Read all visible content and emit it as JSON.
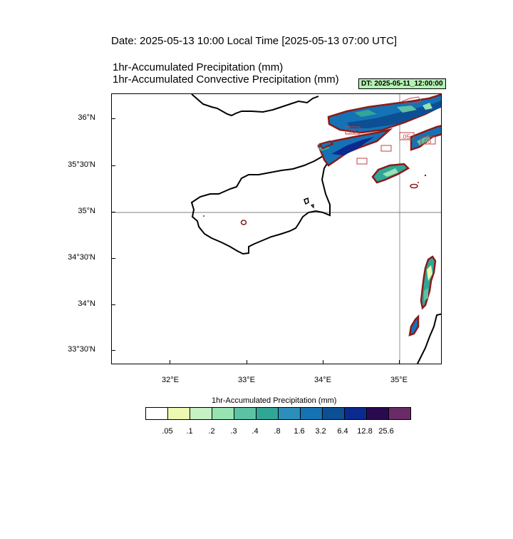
{
  "header": {
    "date_line": "Date: 2025-05-13  10:00 Local Time [2025-05-13  07:00 UTC]",
    "title_line1": "1hr-Accumulated Precipitation   (mm)",
    "title_line2": "1hr-Accumulated Convective Precipitation   (mm)",
    "dt_badge": "DT: 2025-05-11_12:00:00"
  },
  "map": {
    "region": "Cyprus",
    "lat_labels": [
      "36°N",
      "35°30'N",
      "35°N",
      "34°30'N",
      "34°N",
      "33°30'N"
    ],
    "lon_labels": [
      "32°E",
      "33°E",
      "34°E",
      "35°E"
    ],
    "gridline_note": "35°N / 35°E",
    "contour_labels": [
      ".05",
      ".05",
      ".05"
    ],
    "colors": {
      "coast": "#000000",
      "contour": "#8b1a1a",
      "badge_bg": "#b5f0b5"
    }
  },
  "colorbar": {
    "title": "1hr-Accumulated Precipitation  (mm)",
    "labels": [
      ".05",
      ".1",
      ".2",
      ".3",
      ".4",
      ".8",
      "1.6",
      "3.2",
      "6.4",
      "12.8",
      "25.6"
    ],
    "colors": [
      "#ffffff",
      "#edf8b1",
      "#c7f0c4",
      "#97e3b2",
      "#5dc1a3",
      "#30a696",
      "#2c8ebb",
      "#1572b5",
      "#0c4f95",
      "#0a2a8f",
      "#2a0a4f",
      "#6b2b66"
    ]
  }
}
